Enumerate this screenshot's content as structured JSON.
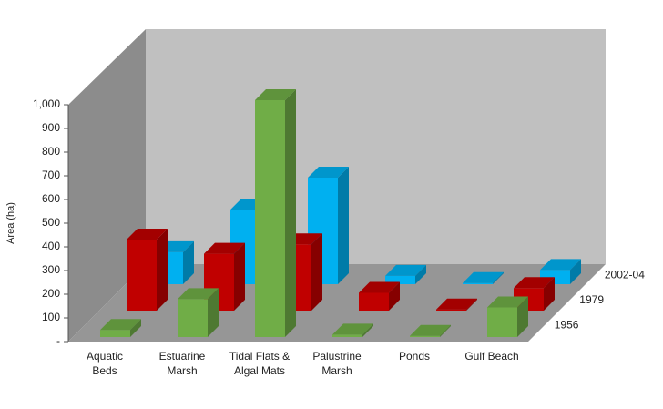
{
  "chart_data": {
    "type": "bar3d",
    "y_label": "Area (ha)",
    "categories": [
      "Aquatic Beds",
      "Estuarine Marsh",
      "Tidal Flats & Algal Mats",
      "Palustrine Marsh",
      "Ponds",
      "Gulf Beach"
    ],
    "series": [
      {
        "name": "1956",
        "color": "#70ad47",
        "values": [
          30,
          160,
          1000,
          10,
          5,
          125
        ]
      },
      {
        "name": "1979",
        "color": "#c00000",
        "values": [
          300,
          240,
          280,
          75,
          5,
          95
        ]
      },
      {
        "name": "2002-04",
        "color": "#00b0f0",
        "values": [
          135,
          315,
          450,
          35,
          5,
          60
        ]
      }
    ],
    "ylim": [
      0,
      1000
    ],
    "yticks": [
      {
        "value": 0,
        "label": "-"
      },
      100,
      200,
      300,
      400,
      500,
      600,
      700,
      800,
      900,
      {
        "value": 1000,
        "label": "1,000"
      }
    ]
  }
}
